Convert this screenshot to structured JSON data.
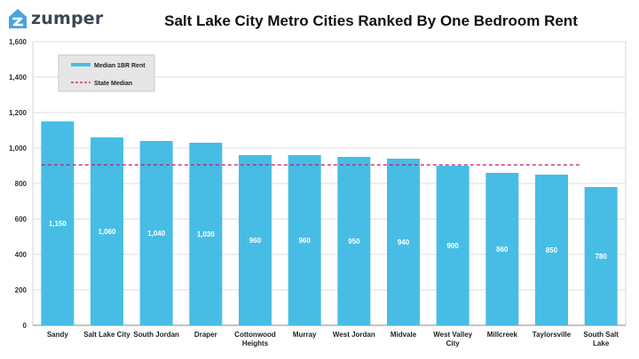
{
  "brand": {
    "name": "zumper",
    "logo_icon": "house-icon",
    "logo_color": "#4aa3df"
  },
  "colors": {
    "bar": "#47bde6",
    "state_median_line": "#c2185b",
    "legend_bg": "#e6e6e6"
  },
  "chart_data": {
    "type": "bar",
    "title": "Salt Lake City Metro Cities Ranked By One Bedroom Rent",
    "xlabel": "",
    "ylabel": "",
    "categories": [
      "Sandy",
      "Salt Lake City",
      "South Jordan",
      "Draper",
      "Cottonwood Heights",
      "Murray",
      "West Jordan",
      "Midvale",
      "West Valley City",
      "Millcreek",
      "Taylorsville",
      "South Salt Lake"
    ],
    "category_label_lines": [
      [
        "Sandy"
      ],
      [
        "Salt Lake City"
      ],
      [
        "South Jordan"
      ],
      [
        "Draper"
      ],
      [
        "Cottonwood",
        "Heights"
      ],
      [
        "Murray"
      ],
      [
        "West Jordan"
      ],
      [
        "Midvale"
      ],
      [
        "West Valley",
        "City"
      ],
      [
        "Millcreek"
      ],
      [
        "Taylorsville"
      ],
      [
        "South Salt",
        "Lake"
      ]
    ],
    "series": [
      {
        "name": "Median 1BR Rent",
        "values": [
          1150,
          1060,
          1040,
          1030,
          960,
          960,
          950,
          940,
          900,
          860,
          850,
          780
        ],
        "labels": [
          "1,150",
          "1,060",
          "1,040",
          "1,030",
          "960",
          "960",
          "950",
          "940",
          "900",
          "860",
          "850",
          "780"
        ]
      }
    ],
    "reference_line": {
      "name": "State Median",
      "value": 905,
      "style": "dashed"
    },
    "ylim": [
      0,
      1600
    ],
    "yticks": [
      0,
      200,
      400,
      600,
      800,
      1000,
      1200,
      1400,
      1600
    ],
    "ytick_labels": [
      "0",
      "200",
      "400",
      "600",
      "800",
      "1,000",
      "1,200",
      "1,400",
      "1,600"
    ],
    "grid": true,
    "legend": {
      "position": "top-left",
      "entries": [
        "Median 1BR Rent",
        "State Median"
      ]
    }
  }
}
